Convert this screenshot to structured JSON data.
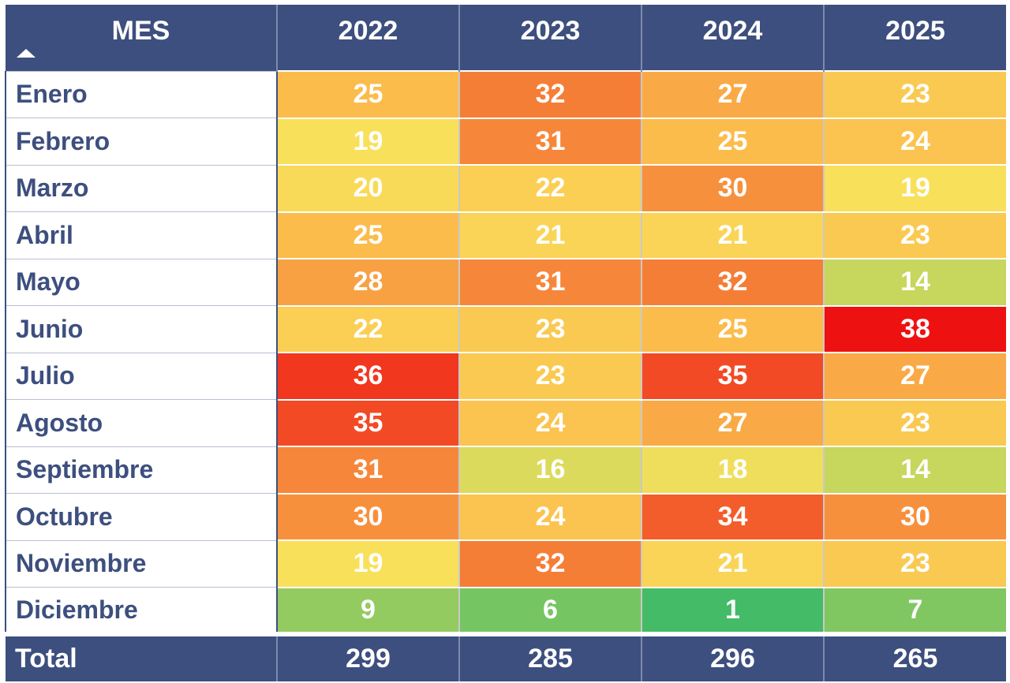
{
  "chart_data": {
    "type": "table",
    "row_header": "MES",
    "sort_indicator": "ascending",
    "columns": [
      "2022",
      "2023",
      "2024",
      "2025"
    ],
    "rows": [
      {
        "label": "Enero",
        "values": [
          25,
          32,
          27,
          23
        ]
      },
      {
        "label": "Febrero",
        "values": [
          19,
          31,
          25,
          24
        ]
      },
      {
        "label": "Marzo",
        "values": [
          20,
          22,
          30,
          19
        ]
      },
      {
        "label": "Abril",
        "values": [
          25,
          21,
          21,
          23
        ]
      },
      {
        "label": "Mayo",
        "values": [
          28,
          31,
          32,
          14
        ]
      },
      {
        "label": "Junio",
        "values": [
          22,
          23,
          25,
          38
        ]
      },
      {
        "label": "Julio",
        "values": [
          36,
          23,
          35,
          27
        ]
      },
      {
        "label": "Agosto",
        "values": [
          35,
          24,
          27,
          23
        ]
      },
      {
        "label": "Septiembre",
        "values": [
          31,
          16,
          18,
          14
        ]
      },
      {
        "label": "Octubre",
        "values": [
          30,
          24,
          34,
          30
        ]
      },
      {
        "label": "Noviembre",
        "values": [
          19,
          32,
          21,
          23
        ]
      },
      {
        "label": "Diciembre",
        "values": [
          9,
          6,
          1,
          7
        ]
      }
    ],
    "total": {
      "label": "Total",
      "values": [
        299,
        285,
        296,
        265
      ]
    },
    "color_scale": {
      "min": 1,
      "mid": 19,
      "max": 38,
      "stops": [
        "#44bb66",
        "#f9e05a",
        "#fbc04e",
        "#f57a35",
        "#ee1111"
      ]
    },
    "header_color": "#3d4f7e"
  }
}
